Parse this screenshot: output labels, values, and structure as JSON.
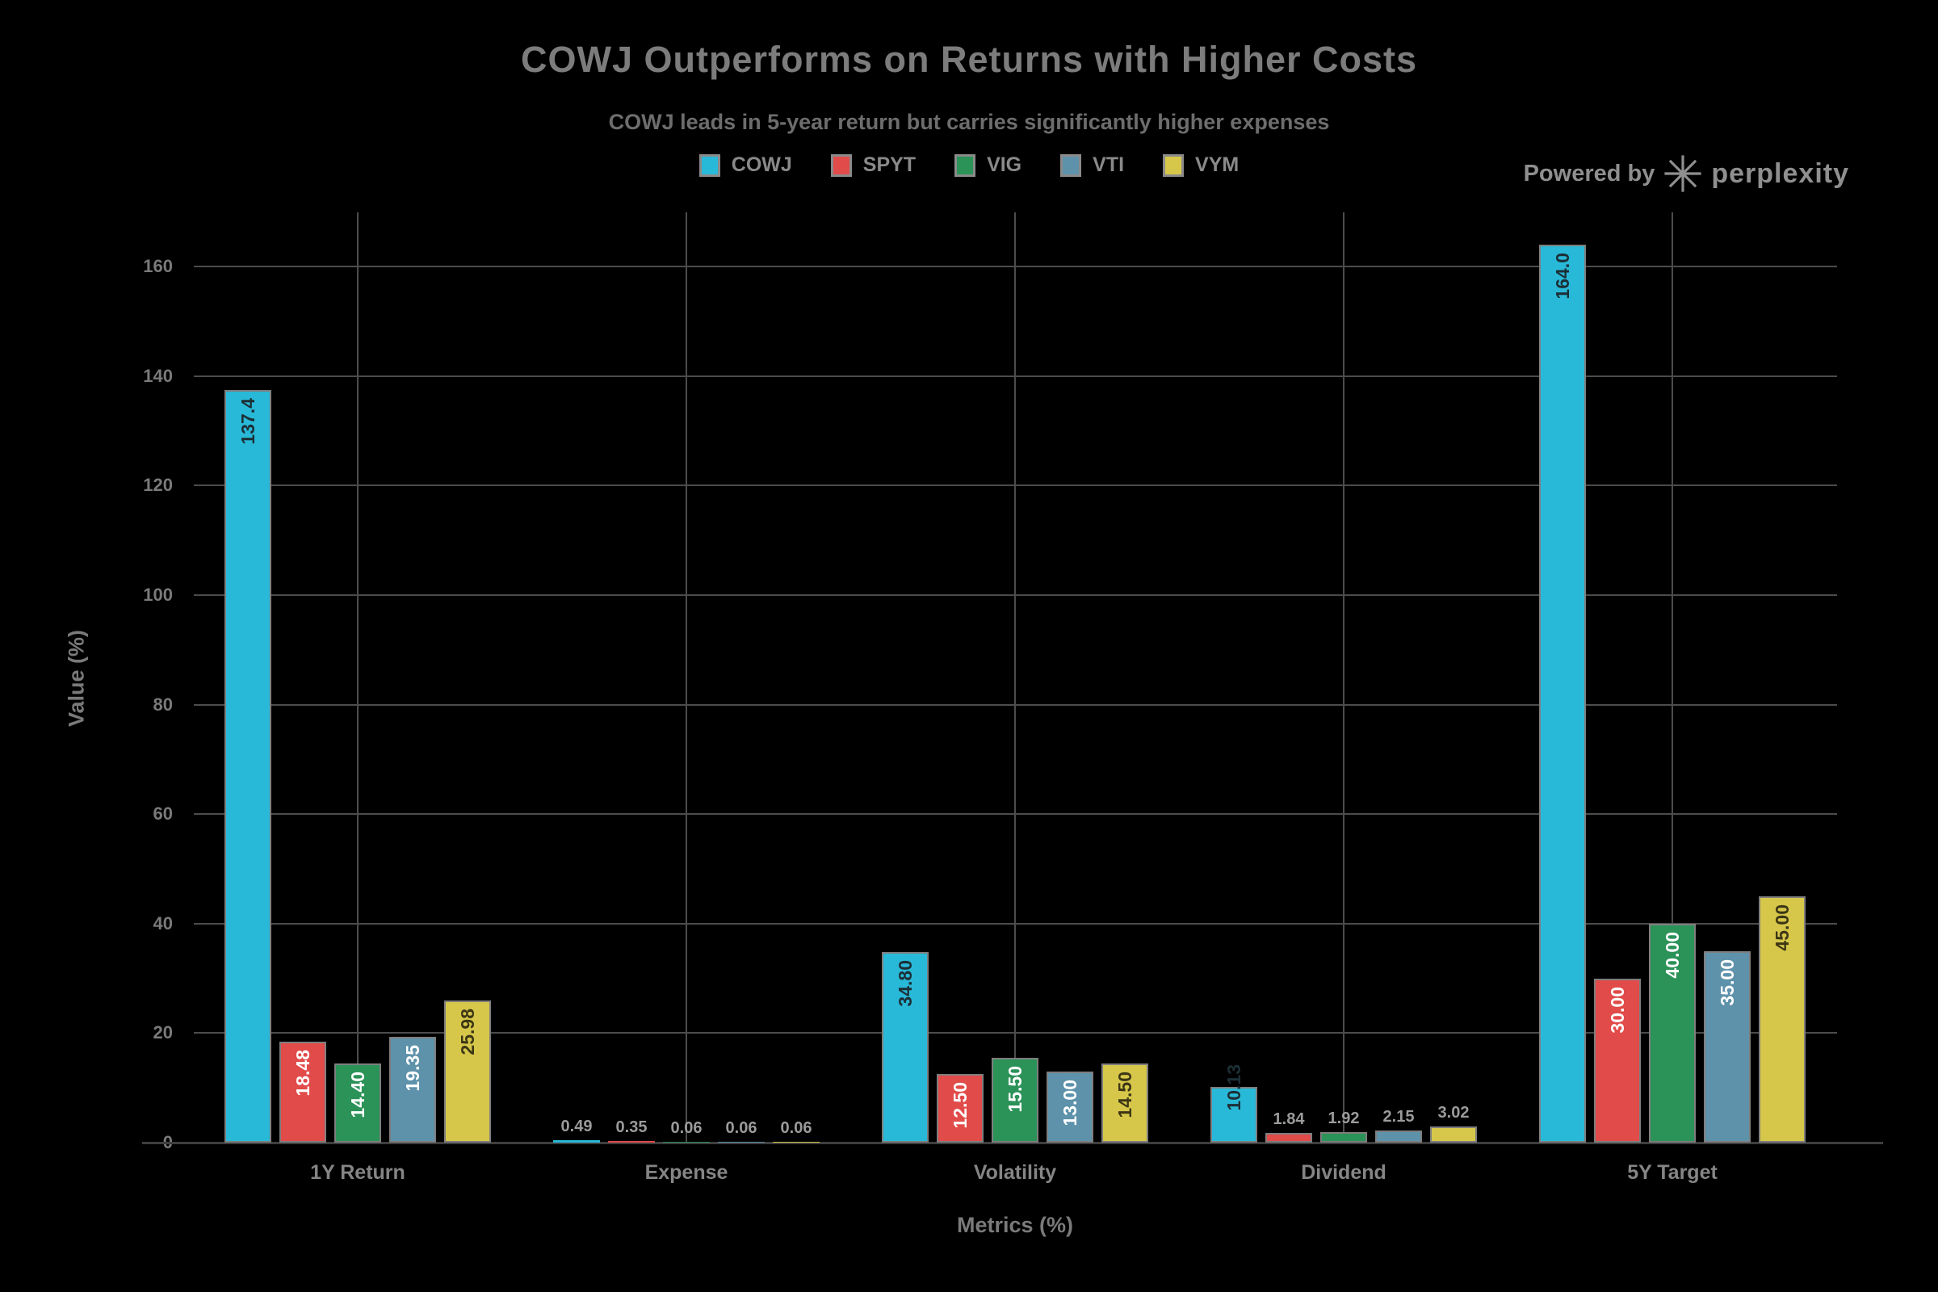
{
  "watermark": {
    "prefix": "Powered by",
    "brand": "perplexity"
  },
  "chart_data": {
    "type": "bar",
    "title": "COWJ Outperforms on Returns with Higher Costs",
    "subtitle": "COWJ leads in 5-year return but carries significantly higher expenses",
    "xlabel": "Metrics (%)",
    "ylabel": "Value (%)",
    "categories": [
      "1Y Return",
      "Expense",
      "Volatility",
      "Dividend",
      "5Y Target"
    ],
    "series": [
      {
        "name": "COWJ",
        "color": "#29b9d8",
        "label_color": "#1c2f36",
        "values": [
          137.4,
          0.49,
          34.8,
          10.13,
          164.0
        ],
        "labels": [
          "137.4",
          "0.49",
          "34.80",
          "10.13",
          "164.0"
        ]
      },
      {
        "name": "SPYT",
        "color": "#e14b49",
        "label_color": "#ffffff",
        "values": [
          18.48,
          0.35,
          12.5,
          1.84,
          30.0
        ],
        "labels": [
          "18.48",
          "0.35",
          "12.50",
          "1.84",
          "30.00"
        ]
      },
      {
        "name": "VIG",
        "color": "#2b9258",
        "label_color": "#ffffff",
        "values": [
          14.4,
          0.06,
          15.5,
          1.92,
          40.0
        ],
        "labels": [
          "14.40",
          "0.06",
          "15.50",
          "1.92",
          "40.00"
        ]
      },
      {
        "name": "VTI",
        "color": "#5e92ab",
        "label_color": "#ffffff",
        "values": [
          19.35,
          0.06,
          13.0,
          2.15,
          35.0
        ],
        "labels": [
          "19.35",
          "0.06",
          "13.00",
          "2.15",
          "35.00"
        ]
      },
      {
        "name": "VYM",
        "color": "#d6c74a",
        "label_color": "#3c3615",
        "values": [
          25.98,
          0.06,
          14.5,
          3.02,
          45.0
        ],
        "labels": [
          "25.98",
          "0.06",
          "14.50",
          "3.02",
          "45.00"
        ]
      }
    ],
    "ylim": [
      0,
      170
    ],
    "yticks": [
      0,
      20,
      40,
      60,
      80,
      100,
      120,
      140,
      160
    ],
    "grid": true,
    "legend_position": "top center",
    "background": "#000000",
    "grid_color": "#4c4c4c",
    "text_color": "#7c7c7c"
  }
}
